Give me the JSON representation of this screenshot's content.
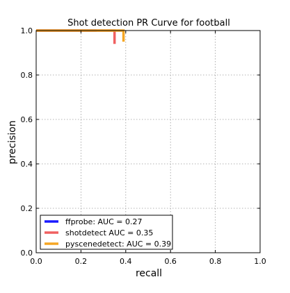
{
  "chart_data": {
    "type": "line",
    "title": "Shot detection PR Curve for football",
    "xlabel": "recall",
    "ylabel": "precision",
    "xlim": [
      0.0,
      1.0
    ],
    "ylim": [
      0.0,
      1.0
    ],
    "x_ticks": [
      "0.0",
      "0.2",
      "0.4",
      "0.6",
      "0.8",
      "1.0"
    ],
    "y_ticks": [
      "0.0",
      "0.2",
      "0.4",
      "0.6",
      "0.8",
      "1.0"
    ],
    "grid": true,
    "legend_position": "bottom-left",
    "series": [
      {
        "name": "ffprobe: AUC = 0.27",
        "color": "#1a1aff",
        "x": [
          0.0,
          0.27
        ],
        "y": [
          1.0,
          1.0
        ]
      },
      {
        "name": "shotdetect AUC = 0.35",
        "color": "#f06060",
        "x": [
          0.0,
          0.35,
          0.35
        ],
        "y": [
          1.0,
          1.0,
          0.94
        ]
      },
      {
        "name": "pyscenedetect: AUC = 0.39",
        "color": "#f5a623",
        "x": [
          0.0,
          0.39,
          0.39
        ],
        "y": [
          1.0,
          1.0,
          0.95
        ]
      }
    ]
  }
}
